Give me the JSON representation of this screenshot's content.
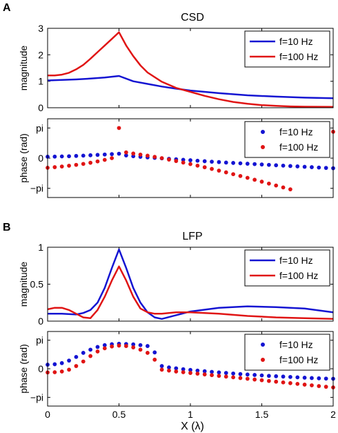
{
  "panels": [
    {
      "letter": "A",
      "title": "CSD"
    },
    {
      "letter": "B",
      "title": "LFP"
    }
  ],
  "xlabel": "X (λ)",
  "colors": {
    "f10": "#1414d2",
    "f100": "#e01414"
  },
  "chart_data": [
    {
      "type": "line",
      "panel": "A",
      "title": "CSD",
      "ylabel": "magnitude",
      "xlim": [
        0,
        2
      ],
      "ylim": [
        0,
        3
      ],
      "xticks": [
        "",
        "",
        "",
        "",
        ""
      ],
      "yticks": [
        {
          "v": 0,
          "label": "0"
        },
        {
          "v": 1,
          "label": "1"
        },
        {
          "v": 2,
          "label": "2"
        },
        {
          "v": 3,
          "label": "3"
        }
      ],
      "legend": "top-right",
      "series": [
        {
          "name": "f=10 Hz",
          "color": "#1414d2",
          "x": [
            0,
            0.1,
            0.2,
            0.3,
            0.4,
            0.5,
            0.6,
            0.7,
            0.8,
            0.9,
            1.0,
            1.2,
            1.4,
            1.6,
            1.8,
            2.0
          ],
          "y": [
            1.03,
            1.05,
            1.07,
            1.1,
            1.14,
            1.2,
            1.0,
            0.9,
            0.8,
            0.72,
            0.65,
            0.55,
            0.47,
            0.42,
            0.38,
            0.36
          ]
        },
        {
          "name": "f=100 Hz",
          "color": "#e01414",
          "x": [
            0,
            0.05,
            0.1,
            0.15,
            0.2,
            0.25,
            0.3,
            0.35,
            0.4,
            0.45,
            0.5,
            0.55,
            0.6,
            0.65,
            0.7,
            0.8,
            0.9,
            1.0,
            1.1,
            1.2,
            1.3,
            1.4,
            1.5,
            1.6,
            1.7,
            1.8,
            2.0
          ],
          "y": [
            1.22,
            1.22,
            1.25,
            1.32,
            1.45,
            1.62,
            1.85,
            2.1,
            2.35,
            2.6,
            2.85,
            2.35,
            1.95,
            1.6,
            1.33,
            0.98,
            0.75,
            0.6,
            0.45,
            0.32,
            0.22,
            0.15,
            0.1,
            0.07,
            0.05,
            0.04,
            0.03
          ]
        }
      ]
    },
    {
      "type": "scatter",
      "panel": "A",
      "ylabel": "phase (rad)",
      "xlim": [
        0,
        2
      ],
      "ylim": [
        -4.1,
        4.1
      ],
      "xticks": [
        "",
        "",
        "",
        "",
        ""
      ],
      "yticks": [
        {
          "v": 3.14159,
          "label": "pi"
        },
        {
          "v": 0,
          "label": "0"
        },
        {
          "v": -3.14159,
          "label": "−pi"
        }
      ],
      "legend": "top-right",
      "series": [
        {
          "name": "f=10 Hz",
          "color": "#1414d2",
          "x": [
            0,
            0.05,
            0.1,
            0.15,
            0.2,
            0.25,
            0.3,
            0.35,
            0.4,
            0.45,
            0.5,
            0.55,
            0.6,
            0.65,
            0.7,
            0.75,
            0.8,
            0.85,
            0.9,
            0.95,
            1.0,
            1.05,
            1.1,
            1.15,
            1.2,
            1.25,
            1.3,
            1.35,
            1.4,
            1.45,
            1.5,
            1.55,
            1.6,
            1.65,
            1.7,
            1.75,
            1.8,
            1.85,
            1.9,
            1.95,
            2.0
          ],
          "y": [
            0.15,
            0.16,
            0.18,
            0.2,
            0.23,
            0.26,
            0.3,
            0.34,
            0.38,
            0.42,
            0.46,
            0.28,
            0.2,
            0.14,
            0.08,
            0.03,
            -0.02,
            -0.07,
            -0.12,
            -0.17,
            -0.22,
            -0.27,
            -0.32,
            -0.37,
            -0.41,
            -0.46,
            -0.5,
            -0.54,
            -0.58,
            -0.62,
            -0.66,
            -0.7,
            -0.74,
            -0.78,
            -0.82,
            -0.86,
            -0.9,
            -0.94,
            -0.98,
            -1.02,
            -1.05
          ]
        },
        {
          "name": "f=100 Hz",
          "color": "#e01414",
          "x": [
            0,
            0.05,
            0.1,
            0.15,
            0.2,
            0.25,
            0.3,
            0.35,
            0.4,
            0.45,
            0.5,
            0.55,
            0.6,
            0.65,
            0.7,
            0.75,
            0.8,
            0.85,
            0.9,
            0.95,
            1.0,
            1.05,
            1.1,
            1.15,
            1.2,
            1.25,
            1.3,
            1.35,
            1.4,
            1.45,
            1.5,
            1.55,
            1.6,
            1.65,
            1.7,
            2.0
          ],
          "y": [
            -1.0,
            -0.94,
            -0.87,
            -0.79,
            -0.7,
            -0.6,
            -0.48,
            -0.34,
            -0.18,
            0.0,
            3.14,
            0.6,
            0.48,
            0.37,
            0.26,
            0.13,
            0.0,
            -0.15,
            -0.3,
            -0.46,
            -0.62,
            -0.78,
            -0.95,
            -1.12,
            -1.3,
            -1.48,
            -1.67,
            -1.86,
            -2.05,
            -2.25,
            -2.45,
            -2.65,
            -2.85,
            -3.05,
            -3.25,
            2.75
          ]
        }
      ]
    },
    {
      "type": "line",
      "panel": "B",
      "title": "LFP",
      "ylabel": "magnitude",
      "xlim": [
        0,
        2
      ],
      "ylim": [
        0,
        1
      ],
      "xticks": [
        "",
        "",
        "",
        "",
        ""
      ],
      "yticks": [
        {
          "v": 0,
          "label": "0"
        },
        {
          "v": 0.5,
          "label": "0.5"
        },
        {
          "v": 1,
          "label": "1"
        }
      ],
      "legend": "top-right",
      "series": [
        {
          "name": "f=10 Hz",
          "color": "#1414d2",
          "x": [
            0,
            0.1,
            0.2,
            0.25,
            0.3,
            0.35,
            0.4,
            0.45,
            0.5,
            0.55,
            0.6,
            0.65,
            0.7,
            0.75,
            0.8,
            0.9,
            1.0,
            1.2,
            1.4,
            1.6,
            1.8,
            2.0
          ],
          "y": [
            0.1,
            0.1,
            0.09,
            0.11,
            0.15,
            0.25,
            0.45,
            0.72,
            0.97,
            0.72,
            0.45,
            0.25,
            0.12,
            0.05,
            0.03,
            0.08,
            0.13,
            0.18,
            0.2,
            0.19,
            0.17,
            0.12
          ]
        },
        {
          "name": "f=100 Hz",
          "color": "#e01414",
          "x": [
            0,
            0.05,
            0.1,
            0.15,
            0.2,
            0.25,
            0.3,
            0.35,
            0.4,
            0.45,
            0.5,
            0.55,
            0.6,
            0.65,
            0.7,
            0.75,
            0.8,
            0.9,
            1.0,
            1.2,
            1.4,
            1.6,
            1.8,
            2.0
          ],
          "y": [
            0.16,
            0.18,
            0.18,
            0.15,
            0.1,
            0.05,
            0.04,
            0.15,
            0.33,
            0.55,
            0.74,
            0.55,
            0.33,
            0.17,
            0.12,
            0.1,
            0.1,
            0.12,
            0.12,
            0.1,
            0.07,
            0.05,
            0.04,
            0.03
          ]
        }
      ]
    },
    {
      "type": "scatter",
      "panel": "B",
      "ylabel": "phase (rad)",
      "xlim": [
        0,
        2
      ],
      "ylim": [
        -4.1,
        4.1
      ],
      "xticks": [
        "0",
        "0.5",
        "1",
        "1.5",
        "2"
      ],
      "yticks": [
        {
          "v": 3.14159,
          "label": "pi"
        },
        {
          "v": 0,
          "label": "0"
        },
        {
          "v": -3.14159,
          "label": "−pi"
        }
      ],
      "legend": "top-right",
      "series": [
        {
          "name": "f=10 Hz",
          "color": "#1414d2",
          "x": [
            0,
            0.05,
            0.1,
            0.15,
            0.2,
            0.25,
            0.3,
            0.35,
            0.4,
            0.45,
            0.5,
            0.55,
            0.6,
            0.65,
            0.7,
            0.75,
            0.8,
            0.85,
            0.9,
            0.95,
            1.0,
            1.05,
            1.1,
            1.15,
            1.2,
            1.25,
            1.3,
            1.35,
            1.4,
            1.45,
            1.5,
            1.55,
            1.6,
            1.65,
            1.7,
            1.75,
            1.8,
            1.85,
            1.9,
            1.95,
            2.0
          ],
          "y": [
            0.45,
            0.5,
            0.62,
            0.9,
            1.3,
            1.75,
            2.1,
            2.4,
            2.6,
            2.7,
            2.75,
            2.72,
            2.68,
            2.6,
            2.5,
            1.8,
            0.3,
            0.15,
            0.05,
            -0.05,
            -0.13,
            -0.2,
            -0.27,
            -0.34,
            -0.4,
            -0.46,
            -0.52,
            -0.58,
            -0.63,
            -0.68,
            -0.73,
            -0.78,
            -0.82,
            -0.86,
            -0.9,
            -0.94,
            -0.98,
            -1.02,
            -1.05,
            -1.08,
            -1.1
          ]
        },
        {
          "name": "f=100 Hz",
          "color": "#e01414",
          "x": [
            0,
            0.05,
            0.1,
            0.15,
            0.2,
            0.25,
            0.3,
            0.35,
            0.4,
            0.45,
            0.5,
            0.55,
            0.6,
            0.65,
            0.7,
            0.75,
            0.8,
            0.85,
            0.9,
            0.95,
            1.0,
            1.05,
            1.1,
            1.15,
            1.2,
            1.25,
            1.3,
            1.35,
            1.4,
            1.45,
            1.5,
            1.55,
            1.6,
            1.65,
            1.7,
            1.75,
            1.8,
            1.85,
            1.9,
            1.95,
            2.0
          ],
          "y": [
            -0.4,
            -0.38,
            -0.3,
            -0.1,
            0.3,
            0.8,
            1.4,
            1.9,
            2.25,
            2.45,
            2.55,
            2.5,
            2.35,
            2.1,
            1.75,
            1.0,
            -0.1,
            -0.2,
            -0.3,
            -0.38,
            -0.46,
            -0.54,
            -0.62,
            -0.7,
            -0.78,
            -0.86,
            -0.94,
            -1.02,
            -1.1,
            -1.18,
            -1.26,
            -1.34,
            -1.42,
            -1.5,
            -1.58,
            -1.66,
            -1.74,
            -1.82,
            -1.9,
            -1.98,
            -2.05
          ]
        }
      ]
    }
  ]
}
